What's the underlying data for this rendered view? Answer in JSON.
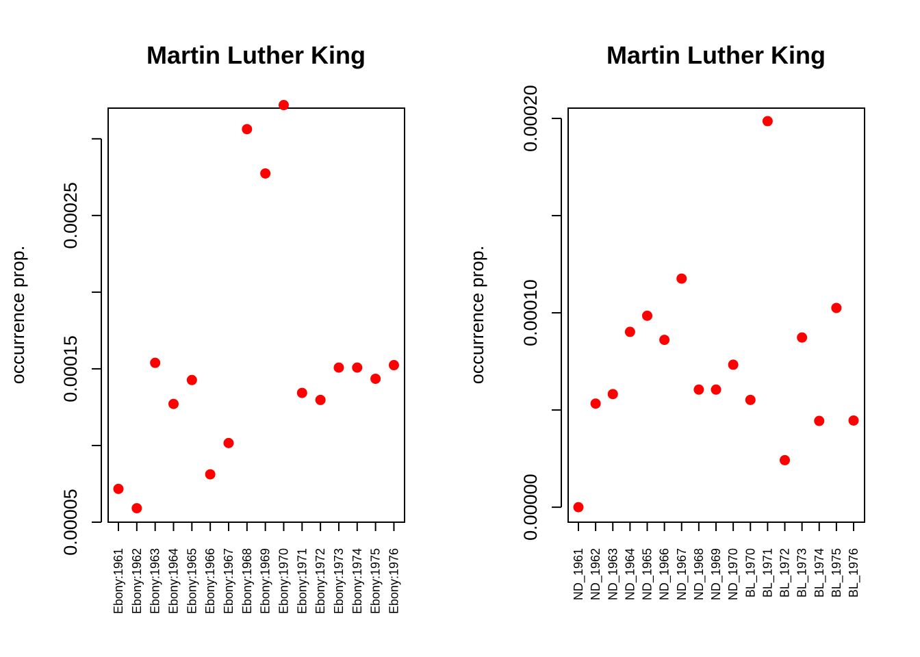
{
  "colors": {
    "point": "#ff0000",
    "axis": "#000000",
    "background": "#ffffff"
  },
  "chart_data": [
    {
      "type": "scatter",
      "title": "Martin Luther King",
      "xlabel": "",
      "ylabel": "occurrence prop.",
      "categories": [
        "Ebony:1961",
        "Ebony:1962",
        "Ebony:1963",
        "Ebony:1964",
        "Ebony:1965",
        "Ebony:1966",
        "Ebony:1967",
        "Ebony:1968",
        "Ebony:1969",
        "Ebony:1970",
        "Ebony:1971",
        "Ebony:1972",
        "Ebony:1973",
        "Ebony:1974",
        "Ebony:1975",
        "Ebony:1976"
      ],
      "values": [
        7.17e-05,
        5.91e-05,
        0.0001539,
        0.0001271,
        0.0001427,
        8.12e-05,
        0.0001016,
        0.0003063,
        0.0002774,
        0.000322,
        0.0001343,
        0.0001297,
        0.0001508,
        0.0001508,
        0.0001435,
        0.0001524
      ],
      "ylim": [
        5e-05,
        0.00032
      ],
      "yticks": [
        5e-05,
        0.0001,
        0.00015,
        0.0002,
        0.00025,
        0.0003
      ],
      "ytick_labels": [
        "0.00005",
        "",
        "0.00015",
        "",
        "0.00025",
        ""
      ],
      "grid": false
    },
    {
      "type": "scatter",
      "title": "Martin Luther King",
      "xlabel": "",
      "ylabel": "occurrence prop.",
      "categories": [
        "ND_1961",
        "ND_1962",
        "ND_1963",
        "ND_1964",
        "ND_1965",
        "ND_1966",
        "ND_1967",
        "ND_1968",
        "ND_1969",
        "ND_1970",
        "BL_1970",
        "BL_1971",
        "BL_1972",
        "BL_1973",
        "BL_1974",
        "BL_1975",
        "BL_1976"
      ],
      "values": [
        0.0,
        5.33e-05,
        5.82e-05,
        9.02e-05,
        9.85e-05,
        8.61e-05,
        0.0001176,
        6.05e-05,
        6.05e-05,
        7.33e-05,
        5.52e-05,
        0.0001986,
        2.42e-05,
        8.73e-05,
        4.44e-05,
        0.0001025,
        4.46e-05
      ],
      "ylim": [
        -7.7e-06,
        0.0002053
      ],
      "yticks": [
        0.0,
        5e-05,
        0.0001,
        0.00015,
        0.0002
      ],
      "ytick_labels": [
        "0.00000",
        "",
        "0.00010",
        "",
        "0.00020"
      ],
      "grid": false
    }
  ]
}
